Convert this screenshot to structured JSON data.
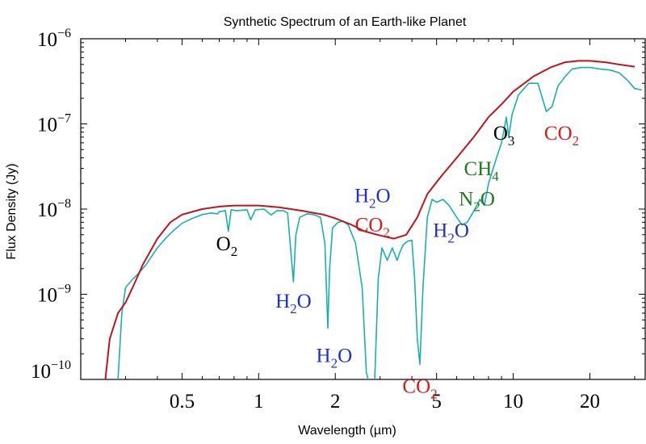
{
  "chart_data": {
    "type": "line",
    "title": "Synthetic Spectrum of an Earth-like Planet",
    "xlabel": "Wavelength (µm)",
    "ylabel": "Flux Density (Jy)",
    "xscale": "log",
    "yscale": "log",
    "xlim": [
      0.2,
      33
    ],
    "ylim": [
      1e-10,
      1e-06
    ],
    "x_ticks": [
      {
        "value": 0.5,
        "label": "0.5"
      },
      {
        "value": 1,
        "label": "1"
      },
      {
        "value": 2,
        "label": "2"
      },
      {
        "value": 5,
        "label": "5"
      },
      {
        "value": 10,
        "label": "10"
      },
      {
        "value": 20,
        "label": "20"
      }
    ],
    "y_ticks": [
      {
        "value": 1e-10,
        "base": "10",
        "exp": "−10"
      },
      {
        "value": 1e-09,
        "base": "10",
        "exp": "−9"
      },
      {
        "value": 1e-08,
        "base": "10",
        "exp": "−8"
      },
      {
        "value": 1e-07,
        "base": "10",
        "exp": "−7"
      },
      {
        "value": 1e-06,
        "base": "10",
        "exp": "−6"
      }
    ],
    "grid": false,
    "colors": {
      "continuum": "#c0141c",
      "spectrum": "#1aafaf",
      "o2": "#000000",
      "h2o": "#1f2fd0",
      "co2": "#d81c1c",
      "o3": "#000000",
      "ch4": "#1e7a1e",
      "n2o": "#1e7a1e"
    },
    "series": [
      {
        "points": [
          [
            0.25,
            1e-10
          ],
          [
            0.26,
            3e-10
          ],
          [
            0.28,
            6e-10
          ],
          [
            0.3,
            8e-10
          ],
          [
            0.32,
            1.2e-09
          ],
          [
            0.35,
            2.2e-09
          ],
          [
            0.4,
            4.5e-09
          ],
          [
            0.45,
            7e-09
          ],
          [
            0.5,
            8.6e-09
          ],
          [
            0.6,
            1e-08
          ],
          [
            0.7,
            1.07e-08
          ],
          [
            0.8,
            1.1e-08
          ],
          [
            0.9,
            1.1e-08
          ],
          [
            1.0,
            1.1e-08
          ],
          [
            1.2,
            1.05e-08
          ],
          [
            1.5,
            9.5e-09
          ],
          [
            1.8,
            8.6e-09
          ],
          [
            2.0,
            7.8e-09
          ],
          [
            2.3,
            6.6e-09
          ],
          [
            2.6,
            5.5e-09
          ],
          [
            3.0,
            4.9e-09
          ],
          [
            3.4,
            4.5e-09
          ],
          [
            3.8,
            5e-09
          ],
          [
            4.2,
            8e-09
          ],
          [
            4.6,
            1.5e-08
          ],
          [
            5.2,
            2.4e-08
          ],
          [
            6,
            4e-08
          ],
          [
            7,
            7e-08
          ],
          [
            8,
            1.2e-07
          ],
          [
            9,
            1.7e-07
          ],
          [
            10,
            2.4e-07
          ],
          [
            12,
            3.6e-07
          ],
          [
            14,
            4.6e-07
          ],
          [
            16,
            5.3e-07
          ],
          [
            18,
            5.5e-07
          ],
          [
            20,
            5.5e-07
          ],
          [
            23,
            5.3e-07
          ],
          [
            26,
            5e-07
          ],
          [
            30,
            4.7e-07
          ]
        ]
      },
      {
        "points": [
          [
            0.28,
            1e-10
          ],
          [
            0.29,
            6e-10
          ],
          [
            0.3,
            1.2e-09
          ],
          [
            0.32,
            1.5e-09
          ],
          [
            0.34,
            1.8e-09
          ],
          [
            0.36,
            2.2e-09
          ],
          [
            0.38,
            2.8e-09
          ],
          [
            0.4,
            3.5e-09
          ],
          [
            0.43,
            4.5e-09
          ],
          [
            0.46,
            5.5e-09
          ],
          [
            0.5,
            6.8e-09
          ],
          [
            0.55,
            7.8e-09
          ],
          [
            0.6,
            8.6e-09
          ],
          [
            0.65,
            9e-09
          ],
          [
            0.69,
            8.8e-09
          ],
          [
            0.7,
            9.3e-09
          ],
          [
            0.74,
            9.6e-09
          ],
          [
            0.76,
            5.5e-09
          ],
          [
            0.78,
            9.8e-09
          ],
          [
            0.82,
            9.6e-09
          ],
          [
            0.9,
            9.8e-09
          ],
          [
            0.93,
            7.5e-09
          ],
          [
            0.97,
            9.8e-09
          ],
          [
            1.05,
            1e-08
          ],
          [
            1.12,
            8.5e-09
          ],
          [
            1.18,
            9.6e-09
          ],
          [
            1.25,
            9.6e-09
          ],
          [
            1.3,
            9e-09
          ],
          [
            1.34,
            3e-09
          ],
          [
            1.37,
            1.4e-09
          ],
          [
            1.4,
            5e-09
          ],
          [
            1.45,
            8e-09
          ],
          [
            1.55,
            8.8e-09
          ],
          [
            1.65,
            8.6e-09
          ],
          [
            1.75,
            8e-09
          ],
          [
            1.82,
            4e-09
          ],
          [
            1.87,
            4e-10
          ],
          [
            1.9,
            2e-09
          ],
          [
            1.95,
            6e-09
          ],
          [
            2.05,
            7e-09
          ],
          [
            2.15,
            7.2e-09
          ],
          [
            2.25,
            6.5e-09
          ],
          [
            2.4,
            4e-09
          ],
          [
            2.55,
            1.2e-09
          ],
          [
            2.65,
            1.2e-10
          ],
          [
            2.75,
            8e-11
          ],
          [
            2.85,
            8e-11
          ],
          [
            2.95,
            1.5e-09
          ],
          [
            3.05,
            3.5e-09
          ],
          [
            3.2,
            2.5e-09
          ],
          [
            3.35,
            3.5e-09
          ],
          [
            3.5,
            2.5e-09
          ],
          [
            3.6,
            3.2e-09
          ],
          [
            3.7,
            3.8e-09
          ],
          [
            3.85,
            4.2e-09
          ],
          [
            4.0,
            4.3e-09
          ],
          [
            4.1,
            1.5e-09
          ],
          [
            4.2,
            3e-10
          ],
          [
            4.3,
            1.5e-10
          ],
          [
            4.42,
            1.2e-09
          ],
          [
            4.6,
            8e-09
          ],
          [
            4.8,
            1.3e-08
          ],
          [
            5.0,
            1.2e-08
          ],
          [
            5.3,
            1.3e-08
          ],
          [
            5.6,
            1.1e-08
          ],
          [
            6.0,
            8e-09
          ],
          [
            6.3,
            6.5e-09
          ],
          [
            6.6,
            7e-09
          ],
          [
            7.0,
            9.5e-09
          ],
          [
            7.4,
            1.3e-08
          ],
          [
            7.7,
            1.1e-08
          ],
          [
            8.0,
            2e-08
          ],
          [
            8.6,
            4e-08
          ],
          [
            9.0,
            6e-08
          ],
          [
            9.4,
            1.2e-07
          ],
          [
            9.6,
            7e-08
          ],
          [
            9.9,
            1.3e-07
          ],
          [
            10.5,
            2.2e-07
          ],
          [
            11.5,
            3e-07
          ],
          [
            12.5,
            3e-07
          ],
          [
            13.5,
            1.4e-07
          ],
          [
            14.2,
            1.6e-07
          ],
          [
            15,
            2.8e-07
          ],
          [
            16,
            3.6e-07
          ],
          [
            17,
            4.4e-07
          ],
          [
            18.5,
            4.6e-07
          ],
          [
            20,
            4.6e-07
          ],
          [
            22,
            4.4e-07
          ],
          [
            24,
            4.3e-07
          ],
          [
            26,
            4e-07
          ],
          [
            28,
            3.3e-07
          ],
          [
            30,
            2.6e-07
          ],
          [
            32,
            2.5e-07
          ]
        ]
      }
    ],
    "annotations": [
      {
        "base": "O",
        "sub": "2",
        "x": 0.75,
        "y": 3.3e-09,
        "color_key": "o2"
      },
      {
        "base": "H",
        "sub": "2",
        "tail": "O",
        "x": 1.37,
        "y": 7e-10,
        "color_key": "h2o"
      },
      {
        "base": "H",
        "sub": "2",
        "tail": "O",
        "x": 1.98,
        "y": 1.6e-10,
        "color_key": "h2o"
      },
      {
        "base": "H",
        "sub": "2",
        "tail": "O",
        "x": 2.8,
        "y": 1.2e-08,
        "color_key": "h2o"
      },
      {
        "base": "CO",
        "sub": "2",
        "x": 2.8,
        "y": 5.5e-09,
        "color_key": "co2"
      },
      {
        "base": "CO",
        "sub": "2",
        "x": 4.3,
        "y": 7e-11,
        "color_key": "co2"
      },
      {
        "base": "H",
        "sub": "2",
        "tail": "O",
        "x": 5.7,
        "y": 4.7e-09,
        "color_key": "h2o"
      },
      {
        "base": "CH",
        "sub": "4",
        "x": 7.5,
        "y": 2.5e-08,
        "color_key": "ch4"
      },
      {
        "base": "N",
        "sub": "2",
        "tail": "O",
        "x": 7.2,
        "y": 1.1e-08,
        "color_key": "n2o"
      },
      {
        "base": "O",
        "sub": "3",
        "x": 9.2,
        "y": 6.5e-08,
        "color_key": "o3"
      },
      {
        "base": "CO",
        "sub": "2",
        "x": 15.5,
        "y": 6.5e-08,
        "color_key": "co2"
      }
    ]
  }
}
